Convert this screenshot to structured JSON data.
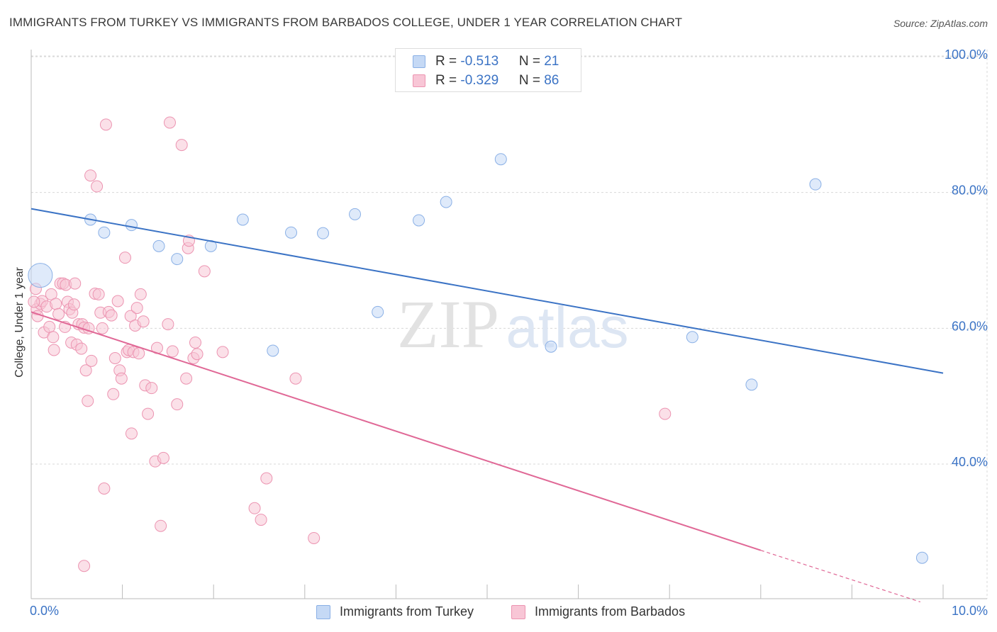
{
  "title": "IMMIGRANTS FROM TURKEY VS IMMIGRANTS FROM BARBADOS COLLEGE, UNDER 1 YEAR CORRELATION CHART",
  "source": "Source: ZipAtlas.com",
  "watermark": {
    "zip": "ZIP",
    "atlas": "atlas"
  },
  "legend": {
    "turkey": {
      "r_label": "R = ",
      "r_value": "-0.513",
      "n_label": "N = ",
      "n_value": "21"
    },
    "barbados": {
      "r_label": "R = ",
      "r_value": "-0.329",
      "n_label": "N = ",
      "n_value": "86"
    }
  },
  "chart_data": {
    "type": "scatter",
    "title": "IMMIGRANTS FROM TURKEY VS IMMIGRANTS FROM BARBADOS COLLEGE, UNDER 1 YEAR CORRELATION CHART",
    "xlabel": "",
    "ylabel": "College, Under 1 year",
    "xlim": [
      0,
      10
    ],
    "ylim": [
      20,
      104
    ],
    "x_tick_labels": [
      "0.0%",
      "10.0%"
    ],
    "y_ticks": [
      40,
      60,
      80,
      100
    ],
    "y_tick_labels": [
      "40.0%",
      "60.0%",
      "80.0%",
      "100.0%"
    ],
    "grid": true,
    "legend_position": "top-center",
    "colors": {
      "turkey_fill": "#c5d9f5",
      "turkey_stroke": "#8ab0e6",
      "turkey_line": "#3b73c5",
      "barbados_fill": "#f8c6d6",
      "barbados_stroke": "#ec94b1",
      "barbados_line": "#e06896",
      "axis_label": "#3b73c5",
      "grid": "#d8d8d8"
    },
    "series": [
      {
        "name": "Immigrants from Turkey",
        "r": -0.513,
        "n": 21,
        "trend": {
          "x": [
            0.0,
            10.0
          ],
          "y": [
            77.6,
            53.4
          ]
        },
        "points": [
          {
            "x": 0.1,
            "y": 67.8,
            "big": true
          },
          {
            "x": 0.65,
            "y": 76.0
          },
          {
            "x": 0.8,
            "y": 74.1
          },
          {
            "x": 1.1,
            "y": 75.2
          },
          {
            "x": 1.4,
            "y": 72.1
          },
          {
            "x": 1.6,
            "y": 70.2
          },
          {
            "x": 1.97,
            "y": 72.1
          },
          {
            "x": 2.32,
            "y": 76.0
          },
          {
            "x": 2.65,
            "y": 56.7
          },
          {
            "x": 2.85,
            "y": 74.1
          },
          {
            "x": 3.2,
            "y": 74.0
          },
          {
            "x": 3.55,
            "y": 76.8
          },
          {
            "x": 3.8,
            "y": 62.4
          },
          {
            "x": 4.25,
            "y": 75.9
          },
          {
            "x": 4.55,
            "y": 78.6
          },
          {
            "x": 5.15,
            "y": 84.9
          },
          {
            "x": 5.7,
            "y": 57.3
          },
          {
            "x": 7.25,
            "y": 58.7
          },
          {
            "x": 7.9,
            "y": 51.7
          },
          {
            "x": 8.6,
            "y": 81.2
          },
          {
            "x": 9.77,
            "y": 26.2
          }
        ]
      },
      {
        "name": "Immigrants from Barbados",
        "r": -0.329,
        "n": 86,
        "trend": {
          "x": [
            0.0,
            8.0
          ],
          "y": [
            62.4,
            27.3
          ]
        },
        "trend_dashed": {
          "x": [
            8.0,
            9.75
          ],
          "y": [
            27.3,
            19.7
          ]
        },
        "points": [
          {
            "x": 0.05,
            "y": 65.8
          },
          {
            "x": 0.06,
            "y": 62.8
          },
          {
            "x": 0.07,
            "y": 61.8
          },
          {
            "x": 0.1,
            "y": 63.6
          },
          {
            "x": 0.12,
            "y": 64.0
          },
          {
            "x": 0.14,
            "y": 59.4
          },
          {
            "x": 0.17,
            "y": 63.2
          },
          {
            "x": 0.2,
            "y": 60.2
          },
          {
            "x": 0.22,
            "y": 65.0
          },
          {
            "x": 0.24,
            "y": 58.7
          },
          {
            "x": 0.25,
            "y": 56.8
          },
          {
            "x": 0.27,
            "y": 63.6
          },
          {
            "x": 0.3,
            "y": 62.1
          },
          {
            "x": 0.32,
            "y": 66.6
          },
          {
            "x": 0.35,
            "y": 66.6
          },
          {
            "x": 0.37,
            "y": 60.2
          },
          {
            "x": 0.38,
            "y": 66.4
          },
          {
            "x": 0.4,
            "y": 63.9
          },
          {
            "x": 0.42,
            "y": 62.8
          },
          {
            "x": 0.44,
            "y": 57.9
          },
          {
            "x": 0.45,
            "y": 62.3
          },
          {
            "x": 0.47,
            "y": 63.5
          },
          {
            "x": 0.48,
            "y": 66.6
          },
          {
            "x": 0.5,
            "y": 57.6
          },
          {
            "x": 0.52,
            "y": 60.6
          },
          {
            "x": 0.55,
            "y": 57.0
          },
          {
            "x": 0.56,
            "y": 60.6
          },
          {
            "x": 0.58,
            "y": 60.1
          },
          {
            "x": 0.6,
            "y": 53.8
          },
          {
            "x": 0.62,
            "y": 49.3
          },
          {
            "x": 0.63,
            "y": 60.0
          },
          {
            "x": 0.65,
            "y": 82.5
          },
          {
            "x": 0.66,
            "y": 55.2
          },
          {
            "x": 0.7,
            "y": 65.1
          },
          {
            "x": 0.72,
            "y": 80.9
          },
          {
            "x": 0.74,
            "y": 65.0
          },
          {
            "x": 0.76,
            "y": 62.3
          },
          {
            "x": 0.78,
            "y": 60.0
          },
          {
            "x": 0.8,
            "y": 36.4
          },
          {
            "x": 0.82,
            "y": 90.0
          },
          {
            "x": 0.85,
            "y": 62.4
          },
          {
            "x": 0.88,
            "y": 61.9
          },
          {
            "x": 0.9,
            "y": 50.3
          },
          {
            "x": 0.92,
            "y": 55.6
          },
          {
            "x": 0.95,
            "y": 64.0
          },
          {
            "x": 0.97,
            "y": 53.8
          },
          {
            "x": 0.99,
            "y": 52.6
          },
          {
            "x": 1.03,
            "y": 70.4
          },
          {
            "x": 1.05,
            "y": 56.5
          },
          {
            "x": 1.07,
            "y": 56.8
          },
          {
            "x": 1.09,
            "y": 61.8
          },
          {
            "x": 1.1,
            "y": 44.5
          },
          {
            "x": 1.12,
            "y": 56.5
          },
          {
            "x": 1.14,
            "y": 60.4
          },
          {
            "x": 1.16,
            "y": 63.0
          },
          {
            "x": 1.18,
            "y": 56.3
          },
          {
            "x": 1.2,
            "y": 65.0
          },
          {
            "x": 1.23,
            "y": 61.0
          },
          {
            "x": 1.25,
            "y": 51.6
          },
          {
            "x": 1.28,
            "y": 47.4
          },
          {
            "x": 1.32,
            "y": 51.2
          },
          {
            "x": 1.36,
            "y": 40.4
          },
          {
            "x": 1.38,
            "y": 57.1
          },
          {
            "x": 1.42,
            "y": 30.9
          },
          {
            "x": 1.45,
            "y": 40.9
          },
          {
            "x": 1.5,
            "y": 60.6
          },
          {
            "x": 1.52,
            "y": 90.3
          },
          {
            "x": 1.55,
            "y": 56.6
          },
          {
            "x": 1.6,
            "y": 48.8
          },
          {
            "x": 1.65,
            "y": 87.0
          },
          {
            "x": 1.7,
            "y": 52.6
          },
          {
            "x": 1.72,
            "y": 71.8
          },
          {
            "x": 1.73,
            "y": 72.9
          },
          {
            "x": 1.78,
            "y": 55.6
          },
          {
            "x": 1.8,
            "y": 57.9
          },
          {
            "x": 1.82,
            "y": 56.2
          },
          {
            "x": 1.9,
            "y": 68.4
          },
          {
            "x": 0.58,
            "y": 25.0
          },
          {
            "x": 2.1,
            "y": 56.5
          },
          {
            "x": 2.45,
            "y": 33.5
          },
          {
            "x": 2.52,
            "y": 31.8
          },
          {
            "x": 2.58,
            "y": 37.9
          },
          {
            "x": 2.9,
            "y": 52.6
          },
          {
            "x": 3.1,
            "y": 29.1
          },
          {
            "x": 6.95,
            "y": 47.4
          },
          {
            "x": 0.03,
            "y": 63.9
          }
        ]
      }
    ]
  },
  "bottom_legend": {
    "turkey_label": "Immigrants from Turkey",
    "barbados_label": "Immigrants from Barbados"
  }
}
